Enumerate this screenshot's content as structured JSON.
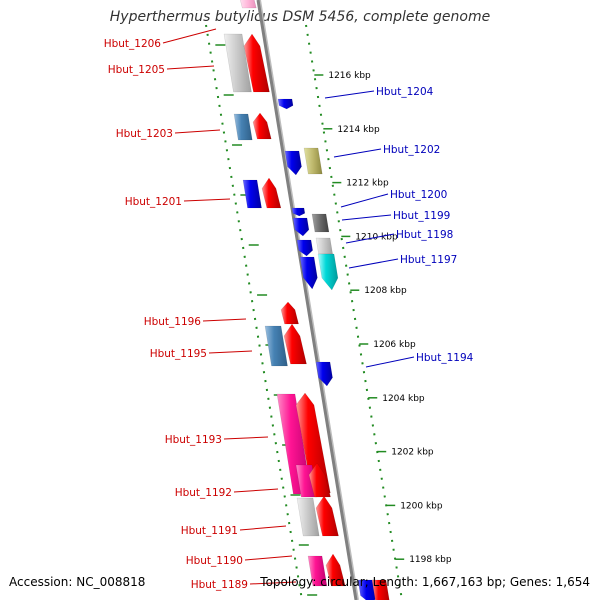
{
  "title": "Hyperthermus butylicus DSM 5456, complete genome",
  "footer": {
    "accession_label": "Accession:",
    "accession": "NC_008818",
    "topology_label": "Topology:",
    "topology": "circular;",
    "length_label": "Length:",
    "length": "1,667,163 bp;",
    "genes_label": "Genes:",
    "genes": "1,654"
  },
  "colors": {
    "forward_label": "#cc0000",
    "reverse_label": "#0000bb",
    "backbone": "#808080",
    "tick": "#228b22"
  },
  "scale": {
    "unit": "kbp",
    "ticks": [
      {
        "pos": 1216,
        "label": "1216 kbp"
      },
      {
        "pos": 1214,
        "label": "1214 kbp"
      },
      {
        "pos": 1212,
        "label": "1212 kbp"
      },
      {
        "pos": 1210,
        "label": "1210 kbp"
      },
      {
        "pos": 1208,
        "label": "1208 kbp"
      },
      {
        "pos": 1206,
        "label": "1206 kbp"
      },
      {
        "pos": 1204,
        "label": "1204 kbp"
      },
      {
        "pos": 1202,
        "label": "1202 kbp"
      },
      {
        "pos": 1200,
        "label": "1200 kbp"
      },
      {
        "pos": 1198,
        "label": "1198 kbp"
      }
    ]
  },
  "forward_genes": [
    {
      "label": "Hbut_1206"
    },
    {
      "label": "Hbut_1205"
    },
    {
      "label": "Hbut_1203"
    },
    {
      "label": "Hbut_1201"
    },
    {
      "label": "Hbut_1196"
    },
    {
      "label": "Hbut_1195"
    },
    {
      "label": "Hbut_1193"
    },
    {
      "label": "Hbut_1192"
    },
    {
      "label": "Hbut_1191"
    },
    {
      "label": "Hbut_1190"
    },
    {
      "label": "Hbut_1189"
    }
  ],
  "reverse_genes": [
    {
      "label": "Hbut_1204"
    },
    {
      "label": "Hbut_1202"
    },
    {
      "label": "Hbut_1200"
    },
    {
      "label": "Hbut_1199"
    },
    {
      "label": "Hbut_1198"
    },
    {
      "label": "Hbut_1197"
    },
    {
      "label": "Hbut_1194"
    }
  ]
}
